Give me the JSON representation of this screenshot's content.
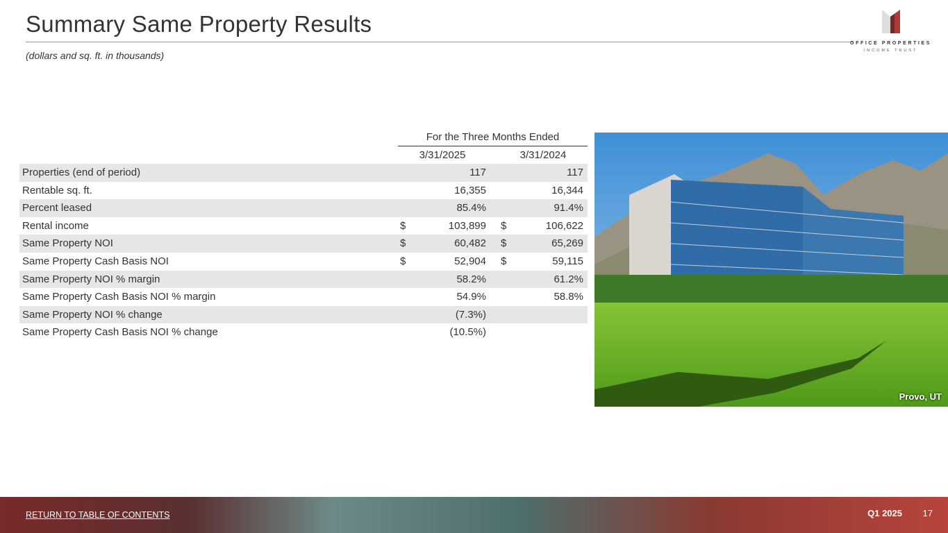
{
  "header": {
    "title": "Summary Same Property Results",
    "subtitle": "(dollars and sq. ft. in thousands)"
  },
  "logo": {
    "line1": "OFFICE PROPERTIES",
    "line2": "INCOME TRUST"
  },
  "table": {
    "period_header": "For the Three Months Ended",
    "columns": [
      "3/31/2025",
      "3/31/2024"
    ],
    "rows": [
      {
        "label": "Properties (end of period)",
        "c1": "117",
        "c2": "117",
        "dollar": false
      },
      {
        "label": "Rentable sq. ft.",
        "c1": "16,355",
        "c2": "16,344",
        "dollar": false
      },
      {
        "label": "Percent leased",
        "c1": "85.4%",
        "c2": "91.4%",
        "dollar": false
      },
      {
        "label": "Rental income",
        "c1": "103,899",
        "c2": "106,622",
        "dollar": true
      },
      {
        "label": "Same Property NOI",
        "c1": "60,482",
        "c2": "65,269",
        "dollar": true
      },
      {
        "label": "Same Property Cash Basis NOI",
        "c1": "52,904",
        "c2": "59,115",
        "dollar": true
      },
      {
        "label": "Same Property NOI % margin",
        "c1": "58.2%",
        "c2": "61.2%",
        "dollar": false
      },
      {
        "label": "Same Property Cash Basis NOI % margin",
        "c1": "54.9%",
        "c2": "58.8%",
        "dollar": false
      },
      {
        "label": "Same Property NOI % change",
        "c1": "(7.3%)",
        "c2": "",
        "dollar": false
      },
      {
        "label": "Same Property Cash Basis NOI % change",
        "c1": "(10.5%)",
        "c2": "",
        "dollar": false
      }
    ],
    "currency_symbol": "$"
  },
  "photo": {
    "caption": "Provo, UT"
  },
  "footer": {
    "toc_link": "RETURN TO TABLE OF CONTENTS",
    "quarter": "Q1 2025",
    "page": "17"
  }
}
